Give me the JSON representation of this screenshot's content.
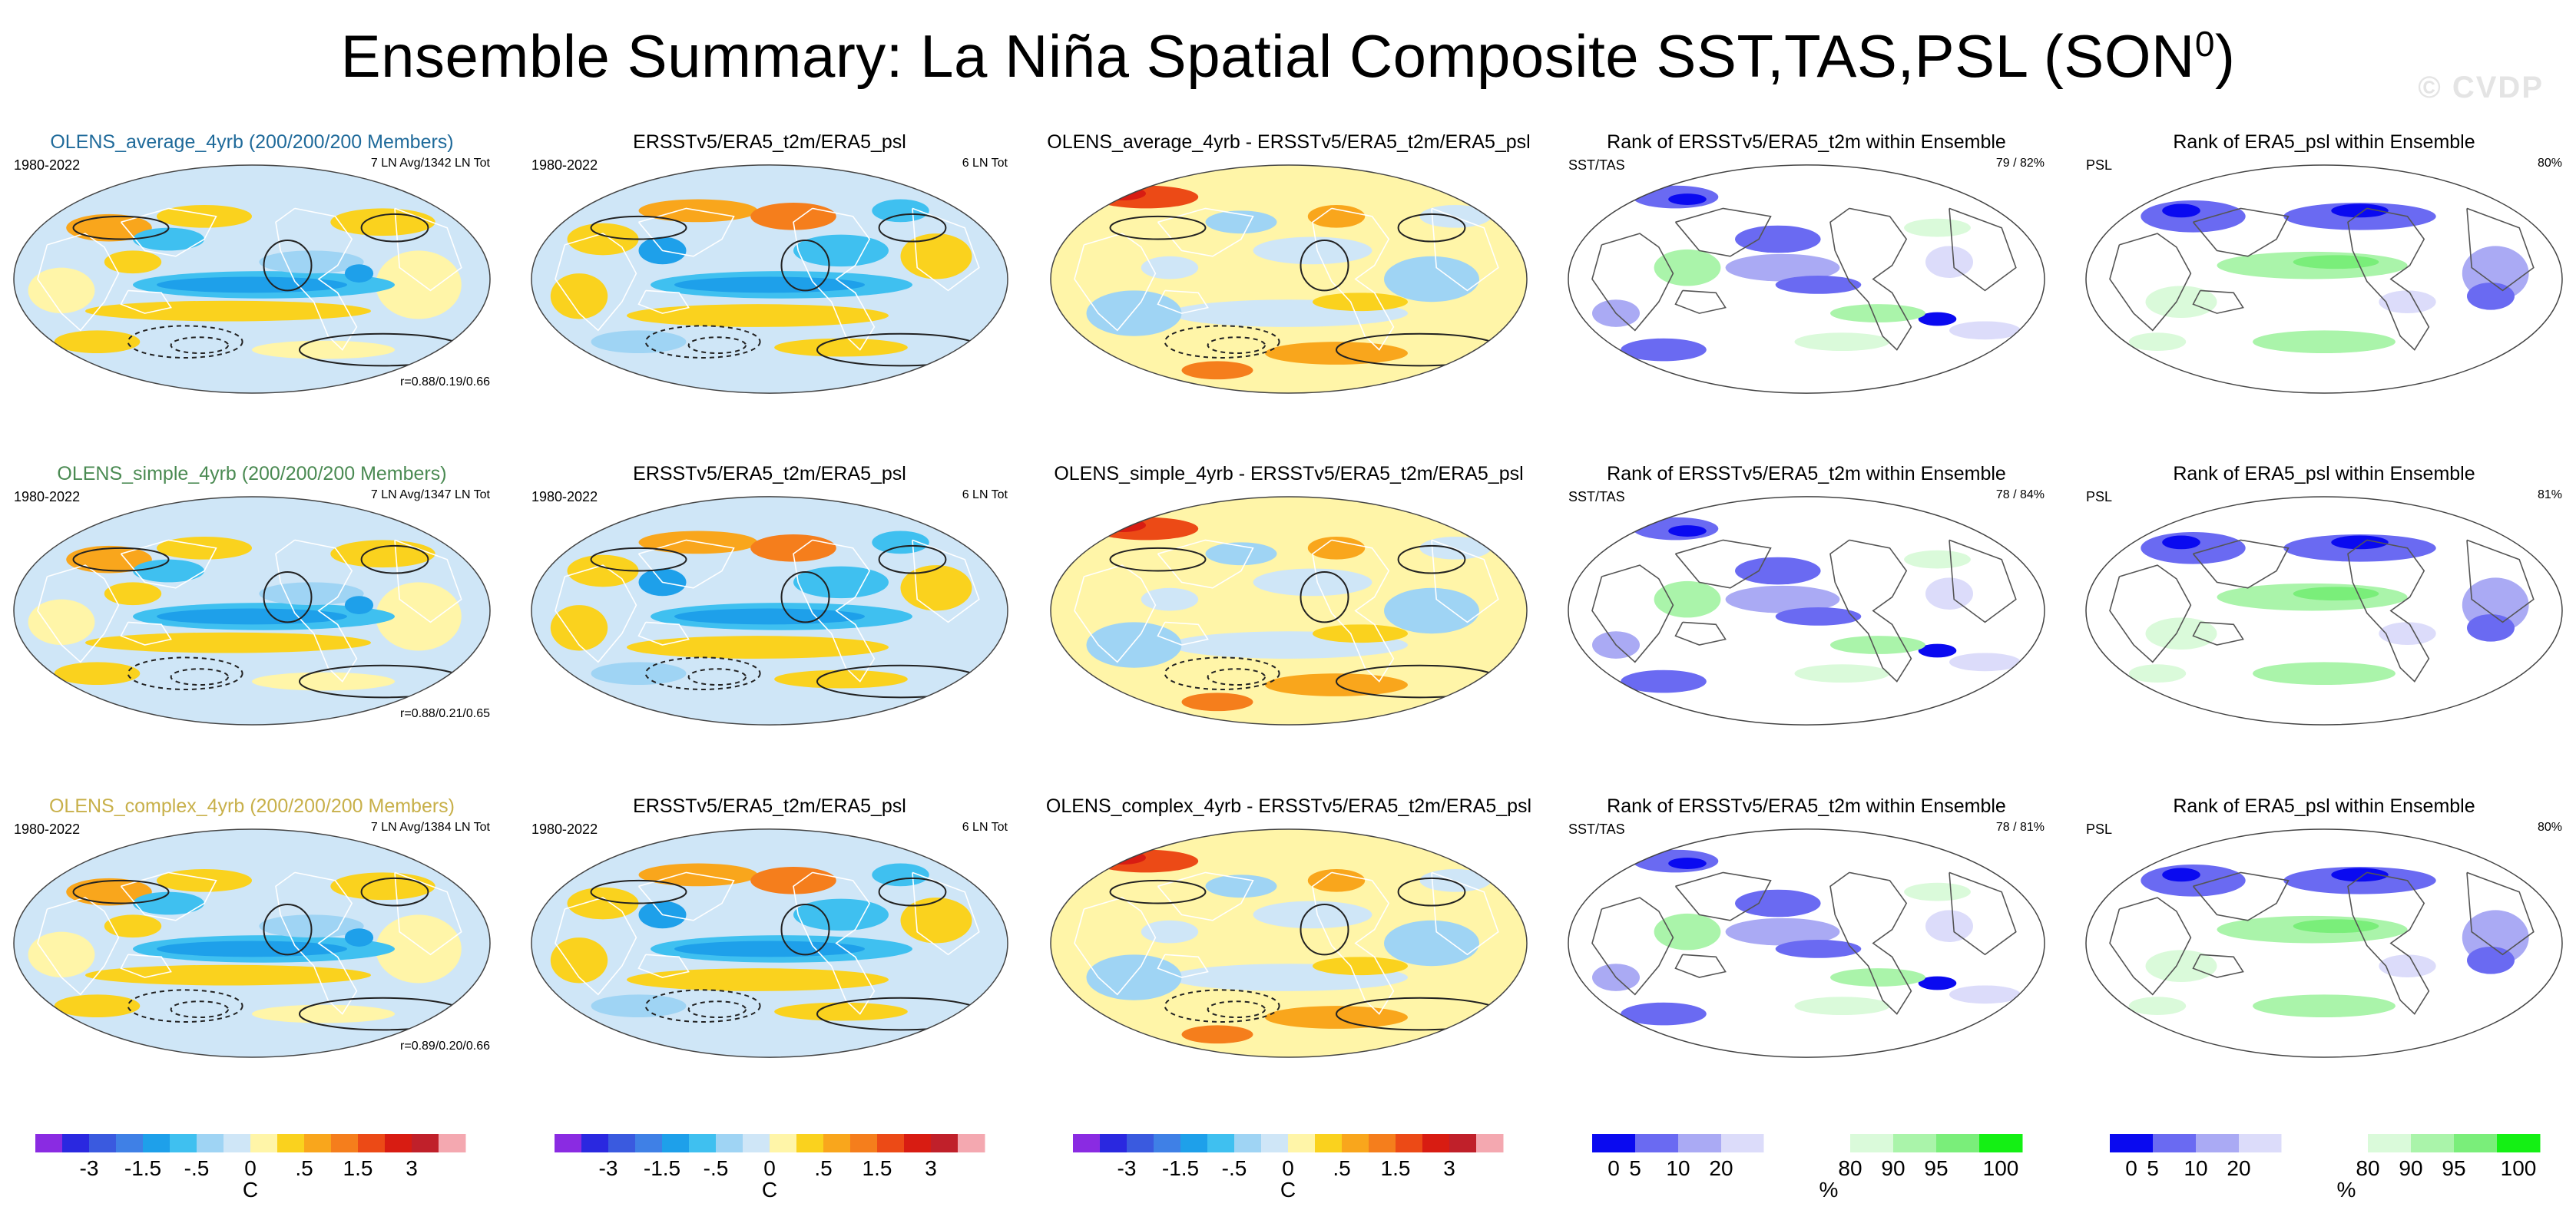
{
  "figure": {
    "title": "Ensemble Summary: La Niña Spatial Composite SST,TAS,PSL (SON",
    "title_sup": "0",
    "title_close": ")",
    "watermark": "© CVDP"
  },
  "chart_data": {
    "type": "heatmap",
    "rows": [
      {
        "panels": [
          {
            "title": "OLENS_average_4yrb (200/200/200 Members)",
            "title_color": "#1f6a9a",
            "left": "1980-2022",
            "right": "7 LN Avg/1342 LN Tot",
            "footer": "r=0.88/0.19/0.66",
            "kind": "model"
          },
          {
            "title": "ERSSTv5/ERA5_t2m/ERA5_psl",
            "title_color": "#000000",
            "left": "1980-2022",
            "right": "6 LN Tot",
            "footer": "",
            "kind": "obs"
          },
          {
            "title": "OLENS_average_4yrb - ERSSTv5/ERA5_t2m/ERA5_psl",
            "title_color": "#000000",
            "left": "",
            "right": "",
            "footer": "",
            "kind": "diff"
          },
          {
            "title": "Rank of ERSSTv5/ERA5_t2m within Ensemble",
            "title_color": "#000000",
            "left": "SST/TAS",
            "right": "79 /  82%",
            "footer": "",
            "kind": "rank"
          },
          {
            "title": "Rank of ERA5_psl within Ensemble",
            "title_color": "#000000",
            "left": "PSL",
            "right": "80%",
            "footer": "",
            "kind": "rankpsl"
          }
        ]
      },
      {
        "panels": [
          {
            "title": "OLENS_simple_4yrb (200/200/200 Members)",
            "title_color": "#4a8a52",
            "left": "1980-2022",
            "right": "7 LN Avg/1347 LN Tot",
            "footer": "r=0.88/0.21/0.65",
            "kind": "model"
          },
          {
            "title": "ERSSTv5/ERA5_t2m/ERA5_psl",
            "title_color": "#000000",
            "left": "1980-2022",
            "right": "6 LN Tot",
            "footer": "",
            "kind": "obs"
          },
          {
            "title": "OLENS_simple_4yrb - ERSSTv5/ERA5_t2m/ERA5_psl",
            "title_color": "#000000",
            "left": "",
            "right": "",
            "footer": "",
            "kind": "diff"
          },
          {
            "title": "Rank of ERSSTv5/ERA5_t2m within Ensemble",
            "title_color": "#000000",
            "left": "SST/TAS",
            "right": "78 /  84%",
            "footer": "",
            "kind": "rank"
          },
          {
            "title": "Rank of ERA5_psl within Ensemble",
            "title_color": "#000000",
            "left": "PSL",
            "right": "81%",
            "footer": "",
            "kind": "rankpsl"
          }
        ]
      },
      {
        "panels": [
          {
            "title": "OLENS_complex_4yrb (200/200/200 Members)",
            "title_color": "#c8b04a",
            "left": "1980-2022",
            "right": "7 LN Avg/1384 LN Tot",
            "footer": "r=0.89/0.20/0.66",
            "kind": "model"
          },
          {
            "title": "ERSSTv5/ERA5_t2m/ERA5_psl",
            "title_color": "#000000",
            "left": "1980-2022",
            "right": "6 LN Tot",
            "footer": "",
            "kind": "obs"
          },
          {
            "title": "OLENS_complex_4yrb - ERSSTv5/ERA5_t2m/ERA5_psl",
            "title_color": "#000000",
            "left": "",
            "right": "",
            "footer": "",
            "kind": "diff"
          },
          {
            "title": "Rank of ERSSTv5/ERA5_t2m within Ensemble",
            "title_color": "#000000",
            "left": "SST/TAS",
            "right": "78 /  81%",
            "footer": "",
            "kind": "rank"
          },
          {
            "title": "Rank of ERA5_psl within Ensemble",
            "title_color": "#000000",
            "left": "PSL",
            "right": "80%",
            "footer": "",
            "kind": "rankpsl"
          }
        ]
      }
    ],
    "colorbars": [
      {
        "kind": "temperature",
        "unit": "C",
        "colors": [
          "#8a2be2",
          "#2a28e0",
          "#3a5adf",
          "#3f80e6",
          "#1ea0ea",
          "#3fc0f0",
          "#9fd4f4",
          "#cfe6f7",
          "#fff5a8",
          "#fad21e",
          "#f9a61c",
          "#f57e1c",
          "#ec4a16",
          "#d81c12",
          "#c0202a",
          "#f4a8b0"
        ],
        "tick_labels": [
          "-3",
          "-1.5",
          "-.5",
          "0",
          ".5",
          "1.5",
          "3"
        ],
        "tick_boundaries": [
          2,
          4,
          6,
          8,
          10,
          12,
          14
        ]
      },
      {
        "kind": "rank",
        "unit": "%",
        "colors": [
          "#0a0af0",
          "#6a6af2",
          "#aaaaf4",
          "#dcdcfa",
          "#ffffff",
          "#ffffff",
          "#dafada",
          "#aaf4aa",
          "#7aee7a",
          "#14f014"
        ],
        "tick_labels": [
          "0",
          "5",
          "10",
          "20",
          "80",
          "90",
          "95",
          "100"
        ],
        "tick_boundaries": [
          0.5,
          1,
          2,
          3,
          6,
          7,
          8,
          9.5
        ]
      }
    ]
  }
}
